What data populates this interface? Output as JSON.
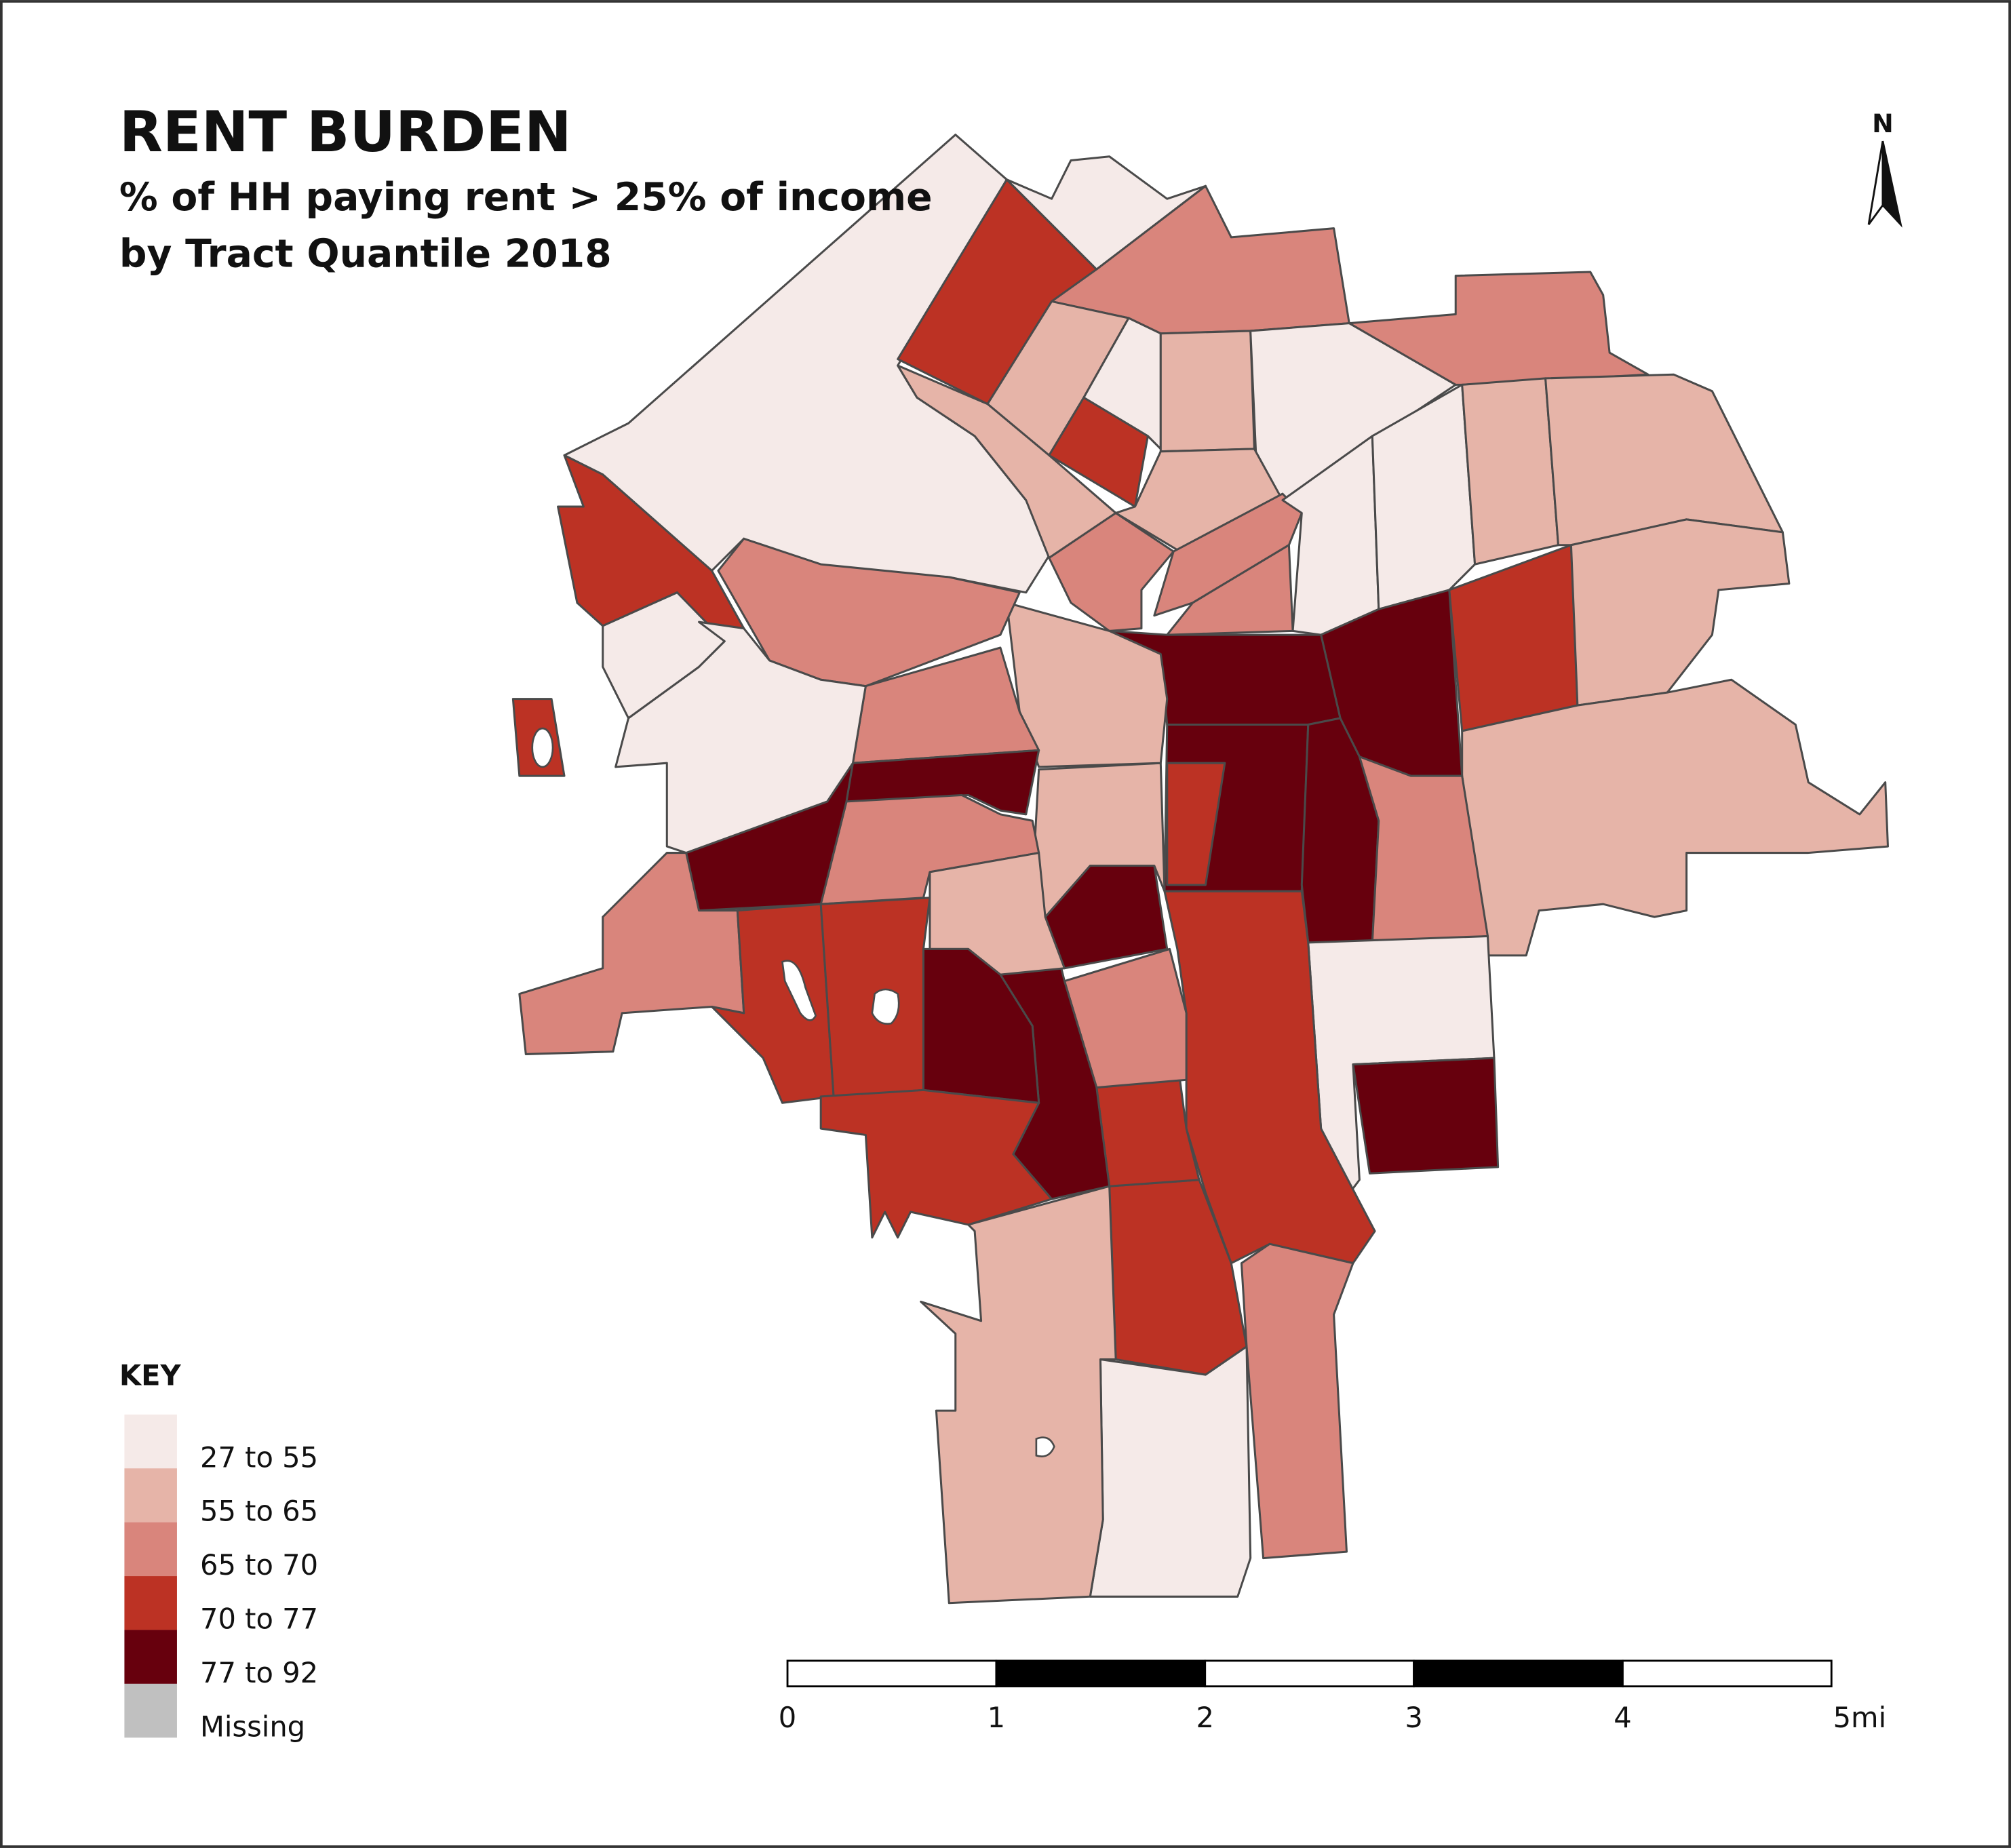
{
  "title": "RENT BURDEN",
  "subtitle": [
    "% of HH paying rent > 25% of income",
    "by Tract Quantile 2018"
  ],
  "north": "N",
  "legend": {
    "title": "KEY",
    "items": [
      {
        "label": "27 to 55",
        "color": "#f5eae8"
      },
      {
        "label": "55 to 65",
        "color": "#e6b4a8"
      },
      {
        "label": "65 to 70",
        "color": "#d9857c"
      },
      {
        "label": "70 to 77",
        "color": "#bc3224"
      },
      {
        "label": "77 to 92",
        "color": "#67000d"
      },
      {
        "label": "Missing",
        "color": "#c0c0c0"
      }
    ]
  },
  "scale_bar": {
    "labels": [
      "0",
      "1",
      "2",
      "3",
      "4",
      "5mi"
    ]
  }
}
